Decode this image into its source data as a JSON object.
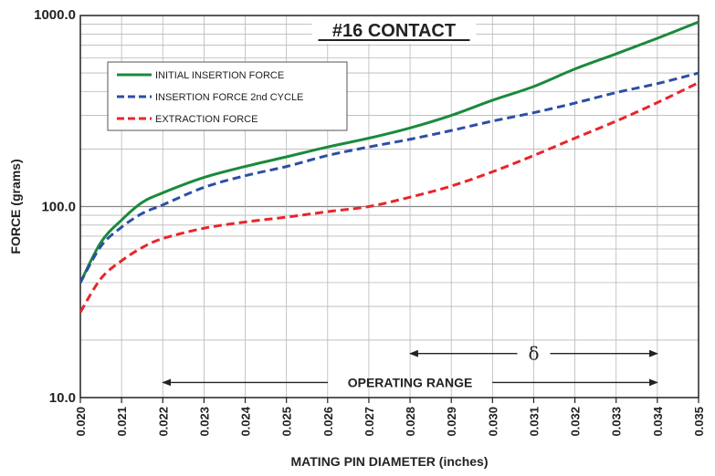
{
  "chart_data": {
    "type": "line",
    "title": "#16 CONTACT",
    "xlabel": "MATING PIN DIAMETER (inches)",
    "ylabel": "FORCE (grams)",
    "xlim": [
      0.02,
      0.035
    ],
    "ylim": [
      10,
      1000
    ],
    "yscale": "log",
    "grid": true,
    "legend_position": "top-left",
    "x_ticks": [
      "0.020",
      "0.021",
      "0.022",
      "0.023",
      "0.024",
      "0.025",
      "0.026",
      "0.027",
      "0.028",
      "0.029",
      "0.030",
      "0.031",
      "0.032",
      "0.033",
      "0.034",
      "0.035"
    ],
    "y_ticks": [
      "10.0",
      "100.0",
      "1000.0"
    ],
    "series": [
      {
        "name": "INITIAL INSERTION FORCE",
        "color": "#1a8a3c",
        "style": "solid",
        "x": [
          0.02,
          0.0205,
          0.021,
          0.0215,
          0.022,
          0.023,
          0.024,
          0.025,
          0.026,
          0.027,
          0.028,
          0.029,
          0.03,
          0.031,
          0.032,
          0.033,
          0.034,
          0.035
        ],
        "y": [
          40,
          65,
          85,
          105,
          118,
          142,
          162,
          182,
          205,
          228,
          258,
          300,
          360,
          425,
          525,
          630,
          760,
          925
        ]
      },
      {
        "name": "INSERTION FORCE 2nd CYCLE",
        "color": "#2c4fa3",
        "style": "dashed",
        "x": [
          0.02,
          0.0205,
          0.021,
          0.0215,
          0.022,
          0.023,
          0.024,
          0.025,
          0.026,
          0.027,
          0.028,
          0.029,
          0.03,
          0.031,
          0.032,
          0.033,
          0.034,
          0.035
        ],
        "y": [
          40,
          62,
          78,
          92,
          102,
          126,
          145,
          162,
          185,
          205,
          225,
          250,
          280,
          310,
          348,
          395,
          440,
          500
        ]
      },
      {
        "name": "EXTRACTION FORCE",
        "color": "#e8252b",
        "style": "dashed",
        "x": [
          0.02,
          0.0205,
          0.021,
          0.0215,
          0.022,
          0.023,
          0.024,
          0.025,
          0.026,
          0.027,
          0.028,
          0.029,
          0.03,
          0.031,
          0.032,
          0.033,
          0.034,
          0.035
        ],
        "y": [
          28,
          42,
          52,
          61,
          68,
          77,
          83,
          88,
          94,
          100,
          112,
          128,
          152,
          185,
          228,
          280,
          350,
          445
        ]
      }
    ],
    "annotations": [
      {
        "label": "OPERATING RANGE",
        "x_from": 0.022,
        "x_to": 0.034,
        "y": 12
      },
      {
        "label": "δ",
        "x_from": 0.028,
        "x_to": 0.034,
        "y": 17
      }
    ]
  }
}
